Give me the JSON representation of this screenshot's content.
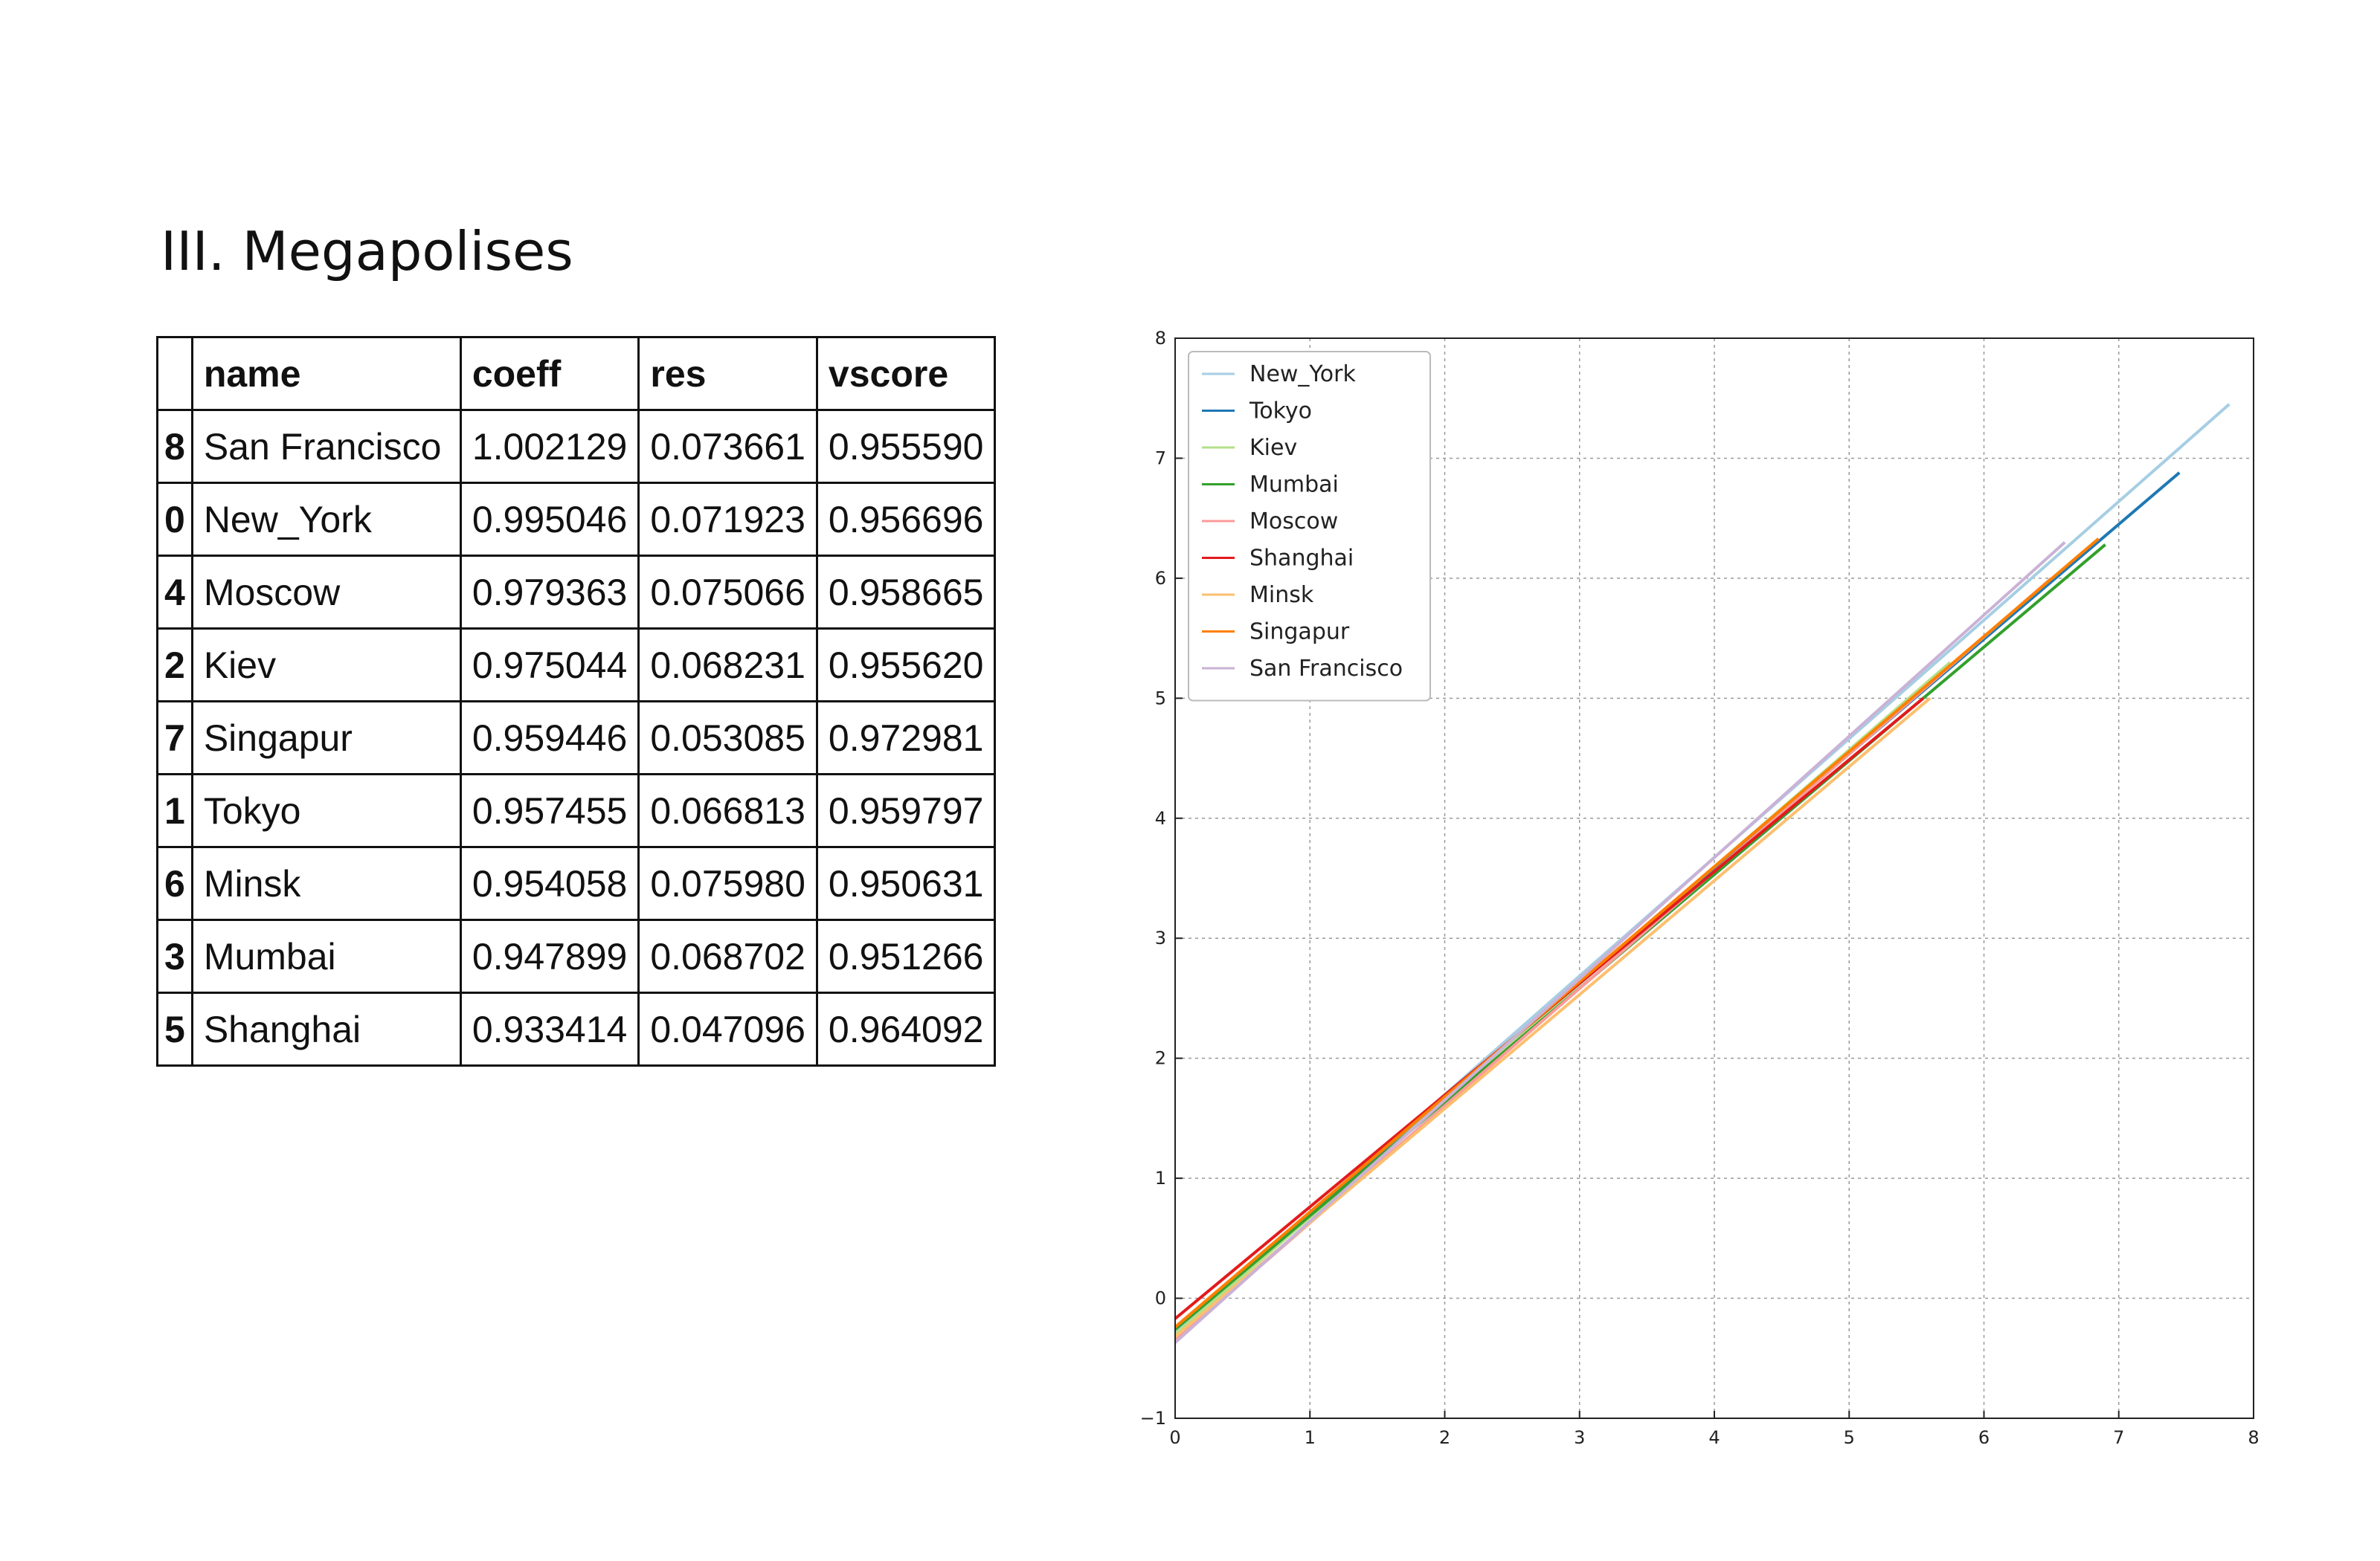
{
  "title": "III. Megapolises",
  "table": {
    "columns": [
      "",
      "name",
      "coeff",
      "res",
      "vscore"
    ],
    "rows": [
      [
        "8",
        "San Francisco",
        "1.002129",
        "0.073661",
        "0.955590"
      ],
      [
        "0",
        "New_York",
        "0.995046",
        "0.071923",
        "0.956696"
      ],
      [
        "4",
        "Moscow",
        "0.979363",
        "0.075066",
        "0.958665"
      ],
      [
        "2",
        "Kiev",
        "0.975044",
        "0.068231",
        "0.955620"
      ],
      [
        "7",
        "Singapur",
        "0.959446",
        "0.053085",
        "0.972981"
      ],
      [
        "1",
        "Tokyo",
        "0.957455",
        "0.066813",
        "0.959797"
      ],
      [
        "6",
        "Minsk",
        "0.954058",
        "0.075980",
        "0.950631"
      ],
      [
        "3",
        "Mumbai",
        "0.947899",
        "0.068702",
        "0.951266"
      ],
      [
        "5",
        "Shanghai",
        "0.933414",
        "0.047096",
        "0.964092"
      ]
    ]
  },
  "chart_data": {
    "type": "line",
    "title": "",
    "xlabel": "",
    "ylabel": "",
    "xlim": [
      0,
      8
    ],
    "ylim": [
      -1,
      8
    ],
    "xticks": [
      "0",
      "1",
      "2",
      "3",
      "4",
      "5",
      "6",
      "7",
      "8"
    ],
    "yticks": [
      "−1",
      "0",
      "1",
      "2",
      "3",
      "4",
      "5",
      "6",
      "7",
      "8"
    ],
    "grid": true,
    "legend": "top-left",
    "series": [
      {
        "name": "New_York",
        "color": "#a6cee3",
        "x": [
          0,
          7.82
        ],
        "y": [
          -0.28,
          7.45
        ]
      },
      {
        "name": "Tokyo",
        "color": "#1f78b4",
        "x": [
          0,
          7.45
        ],
        "y": [
          -0.25,
          6.88
        ]
      },
      {
        "name": "Kiev",
        "color": "#b2df8a",
        "x": [
          0,
          5.75
        ],
        "y": [
          -0.3,
          5.3
        ]
      },
      {
        "name": "Mumbai",
        "color": "#33a02c",
        "x": [
          0,
          6.9
        ],
        "y": [
          -0.26,
          6.28
        ]
      },
      {
        "name": "Moscow",
        "color": "#fb9a99",
        "x": [
          0,
          6.5
        ],
        "y": [
          -0.35,
          6.0
        ]
      },
      {
        "name": "Shanghai",
        "color": "#e31a1c",
        "x": [
          0,
          5.55
        ],
        "y": [
          -0.17,
          5.0
        ]
      },
      {
        "name": "Minsk",
        "color": "#fdbf6f",
        "x": [
          0,
          5.6
        ],
        "y": [
          -0.32,
          5.0
        ]
      },
      {
        "name": "Singapur",
        "color": "#ff7f00",
        "x": [
          0,
          6.85
        ],
        "y": [
          -0.24,
          6.33
        ]
      },
      {
        "name": "San Francisco",
        "color": "#cab2d6",
        "x": [
          0,
          6.6
        ],
        "y": [
          -0.37,
          6.3
        ]
      }
    ]
  }
}
